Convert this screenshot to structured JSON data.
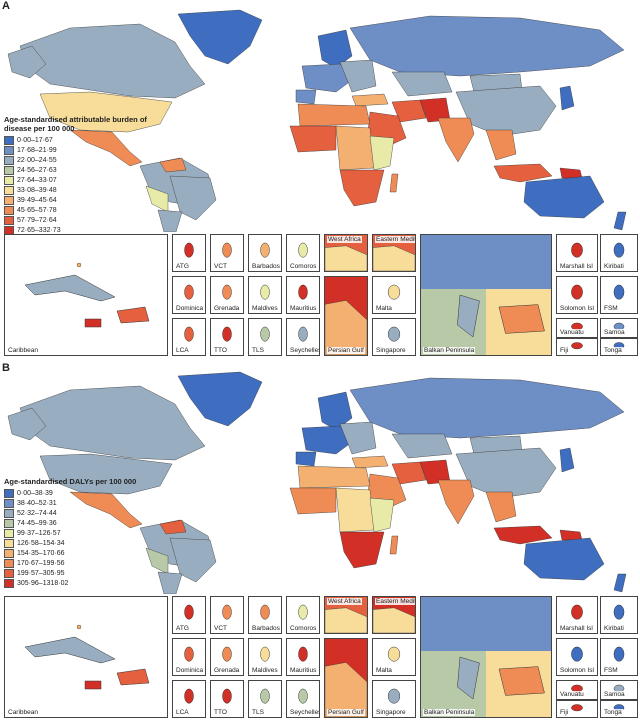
{
  "panels": [
    {
      "letter": "A",
      "legend_title": "Age-standardised attributable burden of disease per 100 000",
      "legend": [
        {
          "label": "0·00–17·67",
          "color": "#3f6ec0"
        },
        {
          "label": "17·68–21·99",
          "color": "#6d8fc6"
        },
        {
          "label": "22·00–24·55",
          "color": "#98aec0"
        },
        {
          "label": "24·56–27·63",
          "color": "#b8c9a8"
        },
        {
          "label": "27·64–33·07",
          "color": "#e8eaa8"
        },
        {
          "label": "33·08–39·48",
          "color": "#f7dc9a"
        },
        {
          "label": "39·49–45·64",
          "color": "#f4b070"
        },
        {
          "label": "45·65–57·78",
          "color": "#ef8c55"
        },
        {
          "label": "57·79–72·64",
          "color": "#e5603e"
        },
        {
          "label": "72·65–332·73",
          "color": "#d22f27"
        }
      ],
      "insets": [
        "Caribbean",
        "ATG",
        "VCT",
        "Barbados",
        "Comoros",
        "West Africa",
        "Eastern Mediterranean",
        "Dominica",
        "Grenada",
        "Maldives",
        "Mauritius",
        "Malta",
        "LCA",
        "TTO",
        "TLS",
        "Seychelles",
        "Persian Gulf",
        "Singapore",
        "Balkan Peninsula",
        "Marshall Isl",
        "Kiribati",
        "Solomon Isl",
        "FSM",
        "Vanuatu",
        "Samoa",
        "Fiji",
        "Tonga"
      ]
    },
    {
      "letter": "B",
      "legend_title": "Age-standardised DALYs per 100 000",
      "legend": [
        {
          "label": "0·00–38·39",
          "color": "#3f6ec0"
        },
        {
          "label": "38·40–52·31",
          "color": "#6d8fc6"
        },
        {
          "label": "52·32–74·44",
          "color": "#98aec0"
        },
        {
          "label": "74·45–99·36",
          "color": "#b8c9a8"
        },
        {
          "label": "99·37–126·57",
          "color": "#e8eaa8"
        },
        {
          "label": "126·58–154·34",
          "color": "#f7dc9a"
        },
        {
          "label": "154·35–170·66",
          "color": "#f4b070"
        },
        {
          "label": "170·67–199·56",
          "color": "#ef8c55"
        },
        {
          "label": "199·57–305·95",
          "color": "#e5603e"
        },
        {
          "label": "305·96–1318·02",
          "color": "#d22f27"
        }
      ],
      "insets": [
        "Caribbean",
        "ATG",
        "VCT",
        "Barbados",
        "Comoros",
        "West Africa",
        "Eastern Mediterranean",
        "Dominica",
        "Grenada",
        "Maldives",
        "Mauritius",
        "Malta",
        "LCA",
        "TTO",
        "TLS",
        "Seychelles",
        "Persian Gulf",
        "Singapore",
        "Balkan Peninsula",
        "Marshall Isl",
        "Kiribati",
        "Solomon Isl",
        "FSM",
        "Vanuatu",
        "Samoa",
        "Fiji",
        "Tonga"
      ]
    }
  ]
}
